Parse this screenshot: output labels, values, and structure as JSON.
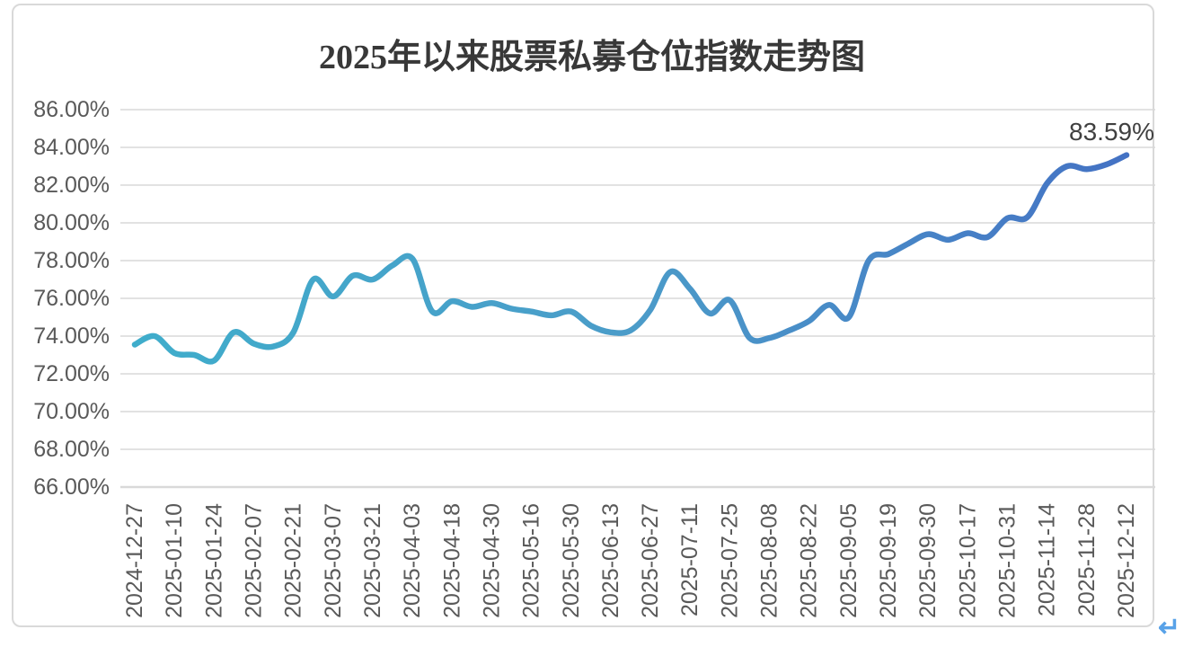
{
  "document": {
    "return_mark": "↵",
    "return_mark_color": "#58a2e8"
  },
  "chart_data": {
    "type": "line",
    "title": "2025年以来股票私募仓位指数走势图",
    "title_color": "#383838",
    "ylabel": "",
    "xlabel": "",
    "ylim": [
      66,
      86
    ],
    "y_tick_step": 2,
    "grid": "horizontal",
    "gridline_color": "#d9d9d9",
    "axis_label_color": "#595959",
    "y_tick_labels": [
      "86.00%",
      "84.00%",
      "82.00%",
      "80.00%",
      "78.00%",
      "76.00%",
      "74.00%",
      "72.00%",
      "70.00%",
      "68.00%",
      "66.00%"
    ],
    "x_tick_labels": [
      "2024-12-27",
      "2025-01-10",
      "2025-01-24",
      "2025-02-07",
      "2025-02-21",
      "2025-03-07",
      "2025-03-21",
      "2025-04-03",
      "2025-04-18",
      "2025-04-30",
      "2025-05-16",
      "2025-05-30",
      "2025-06-13",
      "2025-06-27",
      "2025-07-11",
      "2025-07-25",
      "2025-08-08",
      "2025-08-22",
      "2025-09-05",
      "2025-09-19",
      "2025-09-30",
      "2025-10-17",
      "2025-10-31",
      "2025-11-14",
      "2025-11-28",
      "2025-12-12"
    ],
    "points_per_x_label": 2,
    "values_unit": "percent",
    "values": [
      73.55,
      74.0,
      73.1,
      73.0,
      72.7,
      74.2,
      73.6,
      73.45,
      74.2,
      77.0,
      76.1,
      77.2,
      77.0,
      77.75,
      78.1,
      75.3,
      75.85,
      75.55,
      75.75,
      75.45,
      75.3,
      75.1,
      75.3,
      74.55,
      74.2,
      74.3,
      75.4,
      77.4,
      76.5,
      75.2,
      75.9,
      73.9,
      73.9,
      74.3,
      74.8,
      75.65,
      75.0,
      78.0,
      78.35,
      78.9,
      79.4,
      79.1,
      79.45,
      79.25,
      80.25,
      80.3,
      82.1,
      83.0,
      82.85,
      83.1,
      83.59
    ],
    "end_label": "83.59%",
    "end_label_color": "#404040",
    "line_gradient": [
      "#3fadcb",
      "#4b9cc9",
      "#4472c4"
    ],
    "line_width": 6.5,
    "legend": "none"
  }
}
